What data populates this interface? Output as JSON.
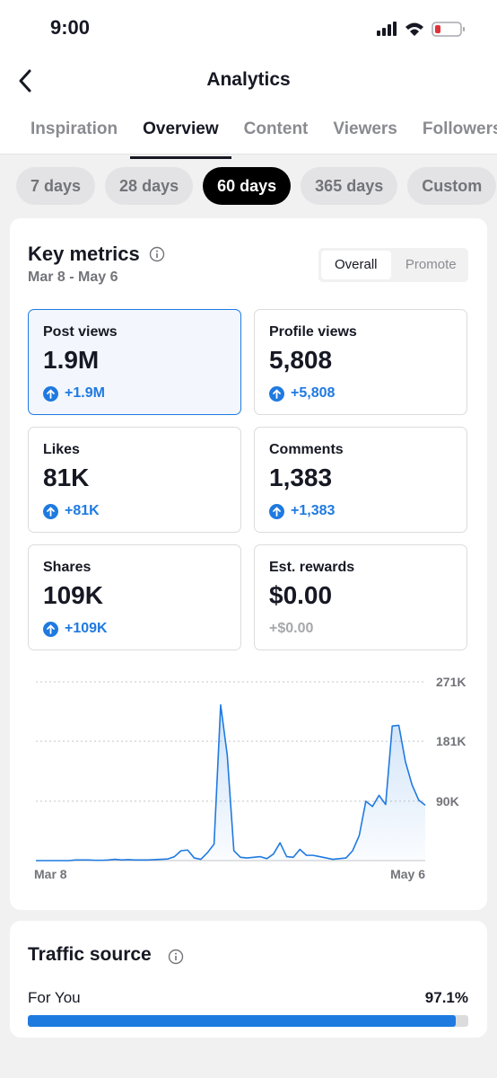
{
  "status_bar": {
    "time": "9:00"
  },
  "header": {
    "title": "Analytics"
  },
  "tabs": [
    "Inspiration",
    "Overview",
    "Content",
    "Viewers",
    "Followers"
  ],
  "ranges": [
    "7 days",
    "28 days",
    "60 days",
    "365 days",
    "Custom"
  ],
  "key_metrics": {
    "title": "Key metrics",
    "date_range": "Mar 8 - May 6",
    "toggle": [
      "Overall",
      "Promote"
    ],
    "metrics": [
      {
        "label": "Post views",
        "value": "1.9M",
        "change": "+1.9M"
      },
      {
        "label": "Profile views",
        "value": "5,808",
        "change": "+5,808"
      },
      {
        "label": "Likes",
        "value": "81K",
        "change": "+81K"
      },
      {
        "label": "Comments",
        "value": "1,383",
        "change": "+1,383"
      },
      {
        "label": "Shares",
        "value": "109K",
        "change": "+109K"
      },
      {
        "label": "Est. rewards",
        "value": "$0.00",
        "change": "+$0.00"
      }
    ]
  },
  "chart": {
    "type": "area",
    "color": "#1f7ae0",
    "x_labels": [
      "Mar 8",
      "May 6"
    ],
    "values": [
      0,
      0,
      0,
      0,
      0,
      0,
      1000,
      1000,
      1000,
      500,
      500,
      1000,
      2000,
      1000,
      1500,
      1000,
      1000,
      1000,
      1500,
      2000,
      2500,
      6000,
      15000,
      16000,
      4000,
      2000,
      12000,
      25000,
      236000,
      160000,
      15000,
      5000,
      4000,
      5000,
      6000,
      3000,
      10000,
      27000,
      6000,
      5000,
      17000,
      8000,
      8000,
      6000,
      4000,
      2000,
      3000,
      4000,
      15000,
      38000,
      90000,
      82000,
      99000,
      85000,
      204000,
      205000,
      150000,
      115000,
      92000,
      84000
    ],
    "ylim": [
      0,
      271000
    ],
    "yticks": [
      {
        "value": 90000,
        "label": "90K"
      },
      {
        "value": 181000,
        "label": "181K"
      },
      {
        "value": 271000,
        "label": "271K"
      }
    ],
    "grid": true
  },
  "traffic_source": {
    "title": "Traffic source",
    "items": [
      {
        "name": "For You",
        "value": 97.1,
        "value_label": "97.1%"
      }
    ]
  }
}
